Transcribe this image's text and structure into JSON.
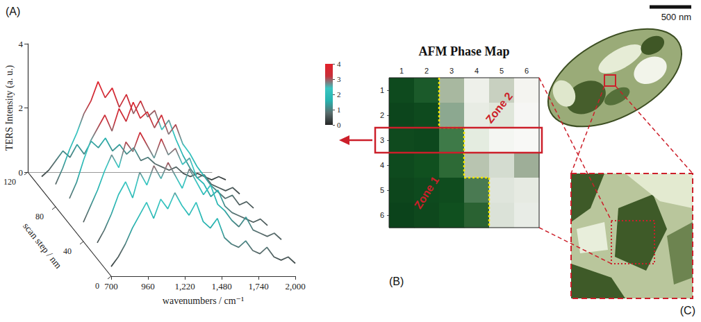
{
  "chart_data": [
    {
      "type": "line",
      "panel_label": "(A)",
      "x_label": "wavenumbers / cm⁻¹",
      "y_label": "TERS Intensity (a. u.)",
      "z_label": "scan step / nm",
      "x": [
        700,
        750,
        800,
        850,
        900,
        950,
        1000,
        1050,
        1100,
        1150,
        1200,
        1250,
        1300,
        1350,
        1400,
        1450,
        1500,
        1550,
        1600,
        1650,
        1700,
        1750,
        1800,
        1850,
        1900,
        1950,
        2000
      ],
      "xlim": [
        700,
        2000
      ],
      "xticks": [
        700,
        960,
        1220,
        1480,
        1740,
        2000
      ],
      "ylim": [
        0,
        4
      ],
      "yticks": [
        0,
        2,
        4
      ],
      "zlim": [
        0,
        120
      ],
      "zticks": [
        0,
        40,
        80,
        120
      ],
      "series": [
        {
          "scan_step": 0,
          "values": [
            0.3,
            0.6,
            1.0,
            1.5,
            1.9,
            2.3,
            1.8,
            2.4,
            2.1,
            2.6,
            2.2,
            1.9,
            2.3,
            1.7,
            1.5,
            1.8,
            1.2,
            1.0,
            0.9,
            1.1,
            0.8,
            0.7,
            0.9,
            0.6,
            0.5,
            0.6,
            0.4
          ]
        },
        {
          "scan_step": 20,
          "values": [
            0.5,
            0.9,
            1.4,
            2.0,
            2.4,
            1.9,
            2.7,
            2.3,
            2.9,
            2.5,
            3.0,
            2.6,
            2.2,
            2.8,
            2.4,
            2.0,
            2.3,
            1.7,
            1.5,
            1.2,
            1.0,
            1.3,
            0.9,
            0.8,
            0.7,
            0.8,
            0.6
          ]
        },
        {
          "scan_step": 40,
          "values": [
            0.6,
            1.1,
            1.6,
            2.2,
            2.7,
            2.3,
            3.1,
            2.8,
            3.4,
            3.0,
            2.6,
            3.2,
            2.7,
            2.9,
            2.4,
            2.6,
            2.0,
            1.8,
            1.4,
            1.6,
            1.1,
            0.9,
            0.8,
            0.7,
            0.6,
            0.7,
            0.5
          ]
        },
        {
          "scan_step": 60,
          "values": [
            0.8,
            1.3,
            2.0,
            2.6,
            3.0,
            3.4,
            2.9,
            3.6,
            3.2,
            3.8,
            3.3,
            3.5,
            3.0,
            3.4,
            2.8,
            3.1,
            2.5,
            2.2,
            1.8,
            1.5,
            1.2,
            1.0,
            0.8,
            0.9,
            0.6,
            0.7,
            0.5
          ]
        },
        {
          "scan_step": 80,
          "values": [
            0.7,
            1.2,
            1.8,
            2.3,
            2.9,
            3.3,
            3.9,
            3.4,
            3.7,
            3.1,
            3.5,
            2.9,
            3.3,
            2.8,
            3.0,
            2.4,
            2.7,
            2.1,
            1.6,
            1.2,
            0.9,
            1.0,
            0.7,
            0.6,
            0.5,
            0.6,
            0.4
          ]
        },
        {
          "scan_step": 100,
          "values": [
            0.4,
            0.6,
            0.9,
            1.2,
            1.0,
            1.4,
            1.1,
            1.5,
            1.3,
            1.6,
            1.2,
            1.4,
            1.1,
            1.3,
            0.9,
            1.0,
            0.8,
            0.7,
            0.6,
            0.7,
            0.5,
            0.4,
            0.5,
            0.4,
            0.3,
            0.4,
            0.3
          ]
        }
      ],
      "colorbar": {
        "range": [
          0,
          4
        ],
        "ticks": [
          0,
          1,
          2,
          3,
          4
        ],
        "colors": [
          "#262626",
          "#5a6e6e",
          "#27b3b0",
          "#39c6c2",
          "#c7303a",
          "#e3202a"
        ]
      }
    },
    {
      "type": "heatmap",
      "panel_label": "(B)",
      "title": "AFM Phase Map",
      "x_categories": [
        "1",
        "2",
        "3",
        "4",
        "5",
        "6"
      ],
      "y_categories": [
        "1",
        "2",
        "3",
        "4",
        "5",
        "6"
      ],
      "colors": [
        [
          "#0e4a1e",
          "#1b5a2a",
          "#a8b8a0",
          "#eef0ea",
          "#c8d0c0",
          "#f4f4f0"
        ],
        [
          "#0c451c",
          "#0e4a1e",
          "#8ca890",
          "#e8ece4",
          "#dfe6da",
          "#f6f6f4"
        ],
        [
          "#0f4a1e",
          "#0d481d",
          "#3e7a48",
          "#e4ece0",
          "#f4f6f2",
          "#f8f8f6"
        ],
        [
          "#0e4a1e",
          "#10501f",
          "#2d6a36",
          "#b8c4b0",
          "#d4dcd0",
          "#9eae98"
        ],
        [
          "#0d461c",
          "#0e4a1e",
          "#0f4c1e",
          "#4a7a52",
          "#dfe5dc",
          "#e6eae2"
        ],
        [
          "#0b431b",
          "#0e481d",
          "#10501f",
          "#2a6232",
          "#dbe2d8",
          "#e8ece6"
        ]
      ],
      "annotations": [
        "Zone 1",
        "Zone 2"
      ],
      "selected_row": "3"
    }
  ],
  "image": {
    "panel_label": "(C)",
    "scale_bar": "500 nm"
  }
}
